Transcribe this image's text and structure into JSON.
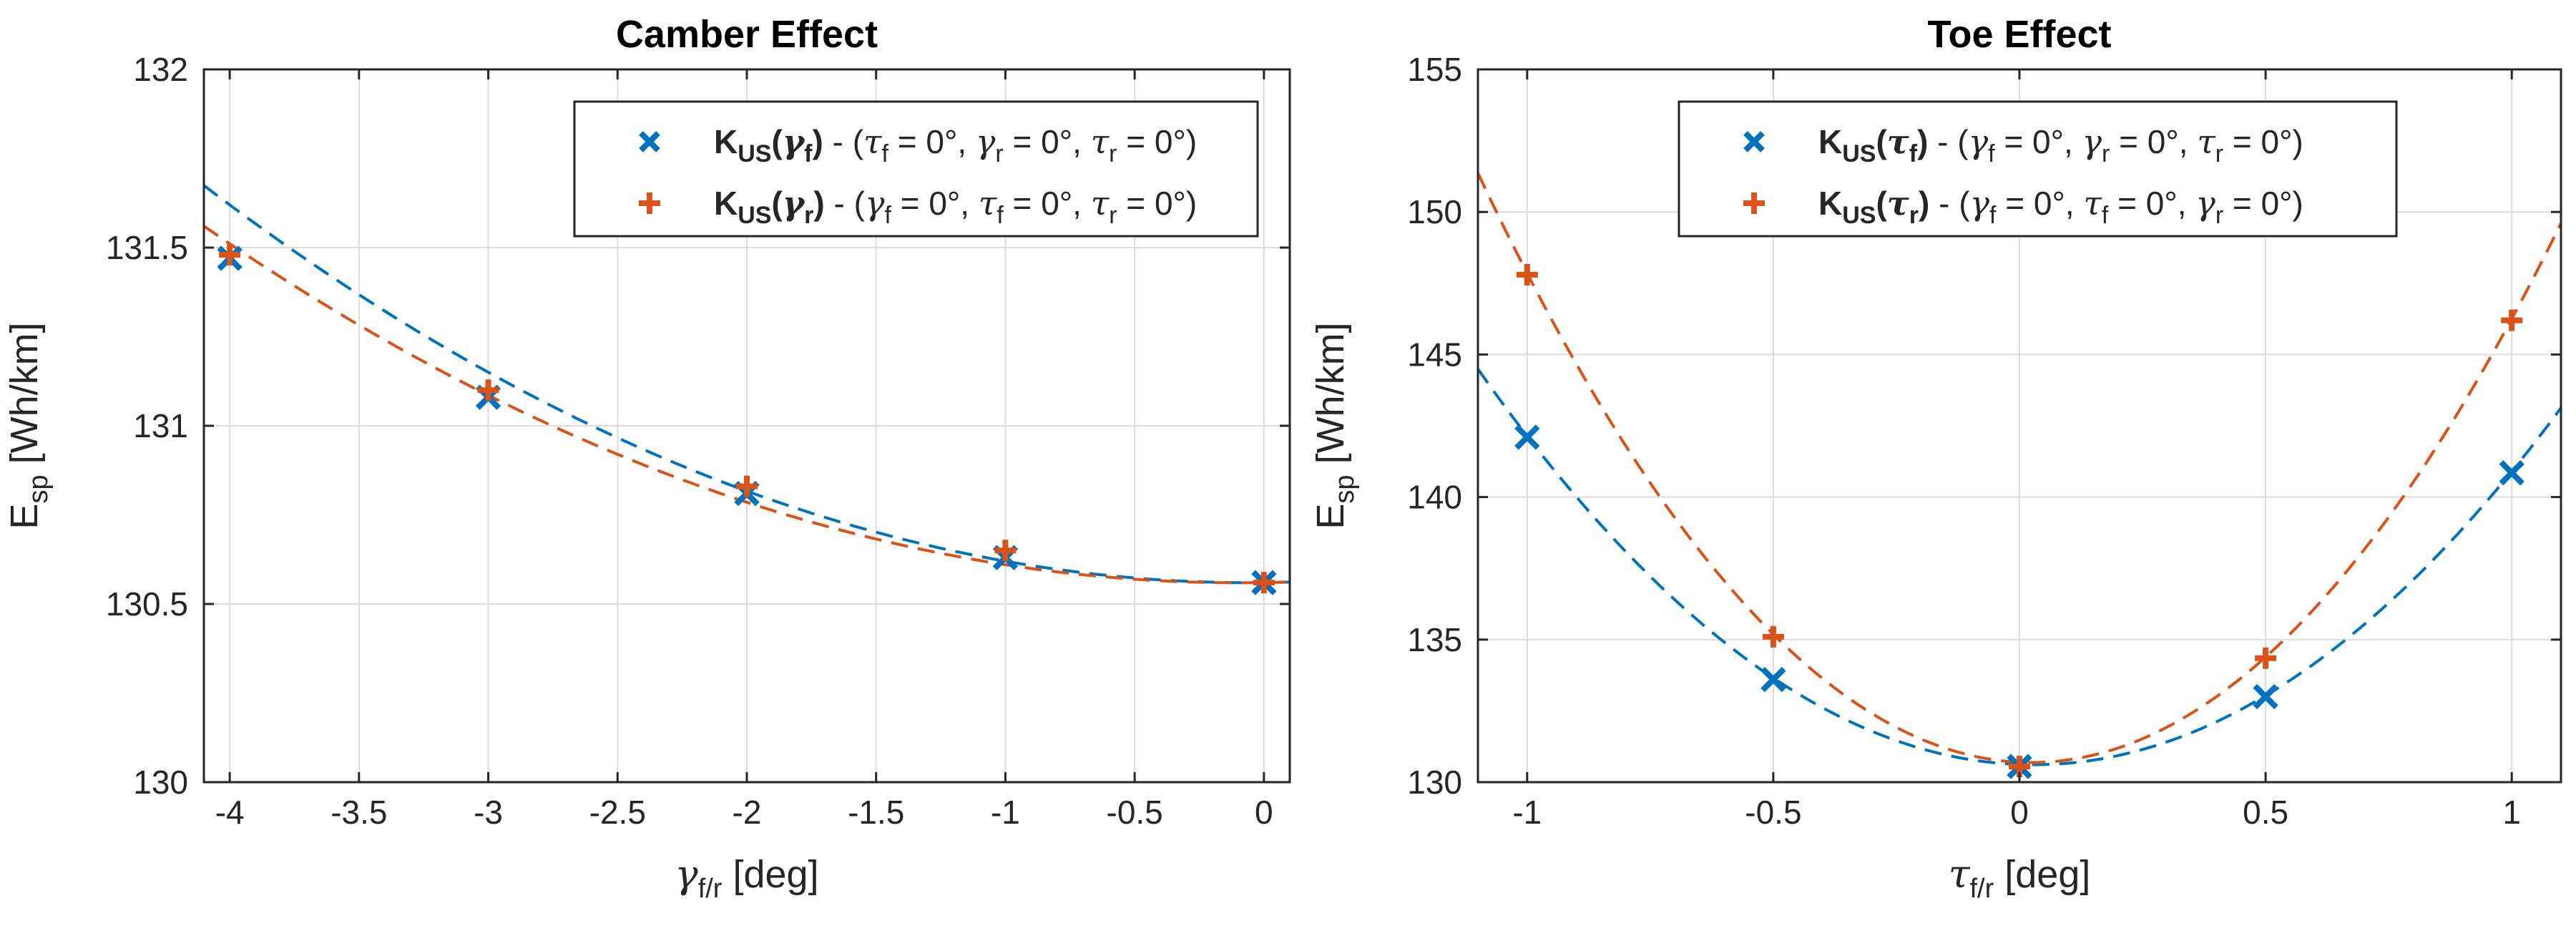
{
  "chart_data": [
    {
      "type": "line",
      "title": "Camber Effect",
      "xlabel": {
        "main": "γ",
        "sub": "f/r",
        "unit": " [deg]"
      },
      "ylabel": {
        "main": "E",
        "sub": "sp",
        "unit": " [Wh/km]"
      },
      "xlim": [
        -4.1,
        0.1
      ],
      "ylim": [
        130,
        132
      ],
      "xticks": [
        -4,
        -3.5,
        -3,
        -2.5,
        -2,
        -1.5,
        -1,
        -0.5,
        0
      ],
      "xtick_labels": [
        "-4",
        "-3.5",
        "-3",
        "-2.5",
        "-2",
        "-1.5",
        "-1",
        "-0.5",
        "0"
      ],
      "yticks": [
        130,
        130.5,
        131,
        131.5,
        132
      ],
      "ytick_labels": [
        "130",
        "130.5",
        "131",
        "131.5",
        "132"
      ],
      "grid": true,
      "legend_position": "top-right",
      "series": [
        {
          "name": "K_US(γ_f)",
          "label_main": "K",
          "label_sub": "US",
          "label_arg": "γ",
          "label_arg_sub": "f",
          "label_rest": "(τ_f = 0°, γ_r = 0°, τ_r = 0°)",
          "legend_parts": [
            {
              "t": " - (",
              "s": ""
            },
            {
              "t": "τ",
              "s": "f",
              "rest": " = 0°, "
            },
            {
              "t": "γ",
              "s": "r",
              "rest": " = 0°, "
            },
            {
              "t": "τ",
              "s": "r",
              "rest": " = 0°)"
            }
          ],
          "color": "#0072BD",
          "marker": "x",
          "x": [
            -4,
            -3,
            -2,
            -1,
            0
          ],
          "y": [
            131.47,
            131.08,
            130.81,
            130.63,
            130.56
          ],
          "fit": [
            0.0683,
            0.0082,
            130.56
          ]
        },
        {
          "name": "K_US(γ_r)",
          "label_main": "K",
          "label_sub": "US",
          "label_arg": "γ",
          "label_arg_sub": "r",
          "label_rest": "(γ_f = 0°, τ_f = 0°, τ_r = 0°)",
          "legend_parts": [
            {
              "t": " - (",
              "s": ""
            },
            {
              "t": "γ",
              "s": "f",
              "rest": " = 0°, "
            },
            {
              "t": "τ",
              "s": "f",
              "rest": " = 0°, "
            },
            {
              "t": "τ",
              "s": "r",
              "rest": " = 0°)"
            }
          ],
          "color": "#D95319",
          "marker": "+",
          "x": [
            -4,
            -3,
            -2,
            -1,
            0
          ],
          "y": [
            131.48,
            131.1,
            130.83,
            130.65,
            130.56
          ],
          "fit": [
            0.0625,
            0.0123,
            130.56
          ]
        }
      ]
    },
    {
      "type": "line",
      "title": "Toe Effect",
      "xlabel": {
        "main": "τ",
        "sub": "f/r",
        "unit": " [deg]"
      },
      "ylabel": {
        "main": "E",
        "sub": "sp",
        "unit": " [Wh/km]"
      },
      "xlim": [
        -1.1,
        1.1
      ],
      "ylim": [
        130,
        155
      ],
      "xticks": [
        -1,
        -0.5,
        0,
        0.5,
        1
      ],
      "xtick_labels": [
        "-1",
        "-0.5",
        "0",
        "0.5",
        "1"
      ],
      "yticks": [
        130,
        135,
        140,
        145,
        150,
        155
      ],
      "ytick_labels": [
        "130",
        "135",
        "140",
        "145",
        "150",
        "155"
      ],
      "grid": true,
      "legend_position": "top-right",
      "series": [
        {
          "name": "K_US(τ_f)",
          "label_main": "K",
          "label_sub": "US",
          "label_arg": "τ",
          "label_arg_sub": "f",
          "legend_parts": [
            {
              "t": " - (",
              "s": ""
            },
            {
              "t": "γ",
              "s": "f",
              "rest": " = 0°, "
            },
            {
              "t": "γ",
              "s": "r",
              "rest": " = 0°, "
            },
            {
              "t": "τ",
              "s": "r",
              "rest": " = 0°)"
            }
          ],
          "color": "#0072BD",
          "marker": "x",
          "x": [
            -1,
            -0.5,
            0,
            0.5,
            1
          ],
          "y": [
            142.1,
            133.6,
            130.55,
            133.0,
            140.85
          ],
          "fit": [
            10.9,
            -0.62,
            130.62
          ]
        },
        {
          "name": "K_US(τ_r)",
          "label_main": "K",
          "label_sub": "US",
          "label_arg": "τ",
          "label_arg_sub": "r",
          "legend_parts": [
            {
              "t": " - (",
              "s": ""
            },
            {
              "t": "γ",
              "s": "f",
              "rest": " = 0°, "
            },
            {
              "t": "τ",
              "s": "f",
              "rest": " = 0°, "
            },
            {
              "t": "γ",
              "s": "r",
              "rest": " = 0°)"
            }
          ],
          "color": "#D95319",
          "marker": "+",
          "x": [
            -1,
            -0.5,
            0,
            0.5,
            1
          ],
          "y": [
            147.8,
            135.1,
            130.55,
            134.35,
            146.2
          ],
          "fit": [
            16.35,
            -0.8,
            130.7
          ]
        }
      ]
    }
  ]
}
